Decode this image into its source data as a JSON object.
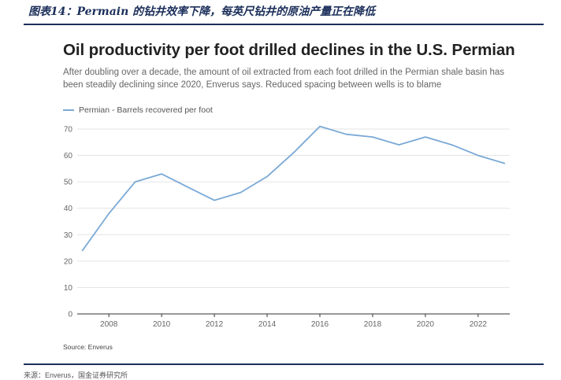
{
  "caption": "图表14：Permain 的钻井效率下降，每英尺钻井的原油产量正在降低",
  "footer_text": "来源：Enverus，国金证券研究所",
  "colors": {
    "series": "#7aa9d6",
    "grid": "#e3e3e3",
    "axis": "#333333",
    "caption": "#1c2f5b"
  },
  "chart_data": {
    "type": "line",
    "title": "Oil productivity per foot drilled declines in the U.S. Permian",
    "subtitle": "After doubling over a decade, the amount of oil extracted from each foot drilled in the Permian shale basin has been steadily declining since 2020, Enverus says. Reduced spacing between wells is to blame",
    "source": "Source: Enverus",
    "xlabel": "",
    "ylabel": "",
    "xlim": [
      2006.8,
      2023.2
    ],
    "ylim": [
      0,
      70
    ],
    "x_ticks": [
      2008,
      2010,
      2012,
      2014,
      2016,
      2018,
      2020,
      2022
    ],
    "y_ticks": [
      0,
      10,
      20,
      30,
      40,
      50,
      60,
      70
    ],
    "grid": true,
    "legend": "top-left",
    "series": [
      {
        "name": "Permian - Barrels recovered per foot",
        "x": [
          2007,
          2008,
          2009,
          2010,
          2011,
          2012,
          2013,
          2014,
          2015,
          2016,
          2017,
          2018,
          2019,
          2020,
          2021,
          2022,
          2023
        ],
        "values": [
          24,
          38,
          50,
          53,
          48,
          43,
          46,
          52,
          61,
          71,
          68,
          67,
          64,
          67,
          64,
          60,
          57
        ]
      }
    ]
  }
}
